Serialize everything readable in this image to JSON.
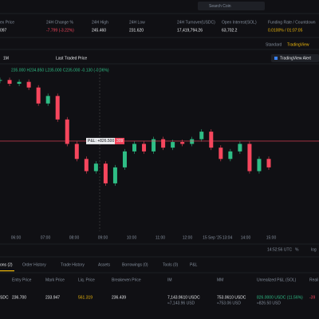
{
  "search_placeholder": "Search Coin",
  "ticker": {
    "labels": [
      "ex Price",
      "24H Change %",
      "24H High",
      "24H Low",
      "24H Turnover(USDC)",
      "Open Interest(SOL)",
      "Funding Rate / Countdown"
    ],
    "values": [
      "097",
      "-7.799 (-3.22%)",
      "245.460",
      "231.620",
      "17,419,794.26",
      "63,702.2",
      "0.0100% / 01:07:05"
    ]
  },
  "chart_tabs": [
    "Standard",
    "TradingView"
  ],
  "toolbar": {
    "interval": "1M",
    "price_type": "Last Traded Price"
  },
  "ohlc": "235.000 H234.850 L235.000 C235.000 -0.130 (-0.06%)",
  "alert": "TradingView Alert",
  "pnl_label": "P&L: +826.500",
  "pnl_badge": "309",
  "chart_data": {
    "type": "candlestick",
    "values": [
      243.2,
      242.8,
      243.0,
      242.4,
      240.7,
      241.5,
      239.0,
      236.4,
      234.8,
      233.5,
      234.3,
      232.2,
      233.9,
      235.6,
      236.4,
      235.6,
      236.9,
      236.0,
      236.6,
      236.4,
      236.9,
      237.7,
      236.0,
      234.8,
      235.6,
      236.4,
      233.5,
      234.8,
      233.9
    ],
    "ylim": [
      227.1,
      244.5
    ],
    "x_labels": [
      "06:00",
      "07:00",
      "08:00",
      "09:00",
      "10:00",
      "11:00",
      "12:00",
      "15 Sep '25",
      "13:04",
      "14:00",
      "15:00"
    ]
  },
  "clock": "14:52:56 UTC",
  "scale_options": [
    "%",
    "log"
  ],
  "tabs": [
    "ons (2)",
    "Order History",
    "Trade History",
    "Assets",
    "Borrowings (0)",
    "Tools (0)",
    "P&L"
  ],
  "positions": {
    "columns": [
      "Entry Price",
      "Mark Price",
      "Liq. Price",
      "Breakeven Price",
      "IM",
      "MM",
      "Unrealized P&L (SOL)",
      "Reali"
    ],
    "row": [
      [
        "SDC"
      ],
      [
        "236.700"
      ],
      [
        "233.947"
      ],
      [
        "561.319"
      ],
      [
        "236.439"
      ],
      [
        "7,143.9610 USDC",
        "≈7,143.96 USD"
      ],
      [
        "753.0610 USDC",
        "≈753.06 USD"
      ],
      [
        "826.0000 USDC (11.56%)",
        "≈826.50 USD"
      ],
      [
        "-39"
      ]
    ]
  }
}
